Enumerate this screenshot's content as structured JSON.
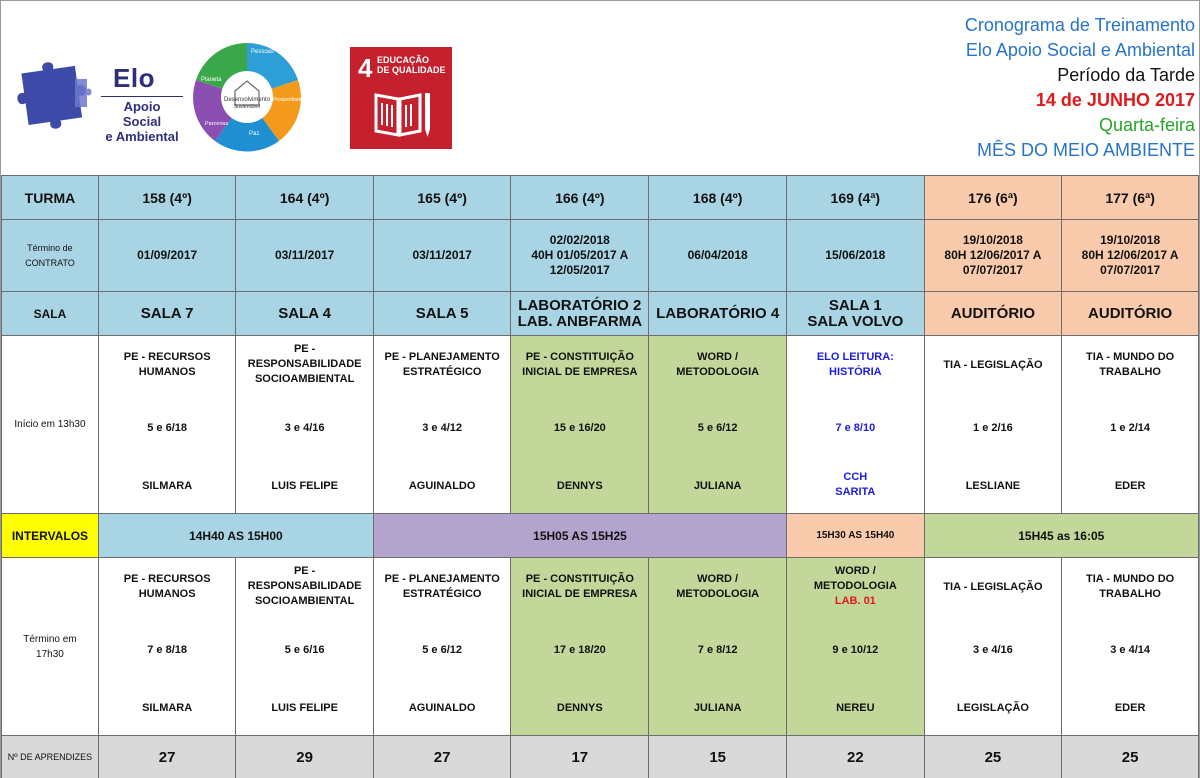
{
  "header": {
    "elo_logo": {
      "name": "Elo",
      "subtitle_line1": "Apoio Social",
      "subtitle_line2": "e Ambiental"
    },
    "wheel": {
      "center_line1": "Desenvolvimento",
      "center_line2": "Sustentável",
      "segments": [
        "Pessoas",
        "Prosperidade",
        "Paz",
        "Parcerias",
        "Planeta"
      ]
    },
    "ods": {
      "number": "4",
      "text_line1": "EDUCAÇÃO",
      "text_line2": "DE QUALIDADE"
    },
    "title_lines": {
      "line1": "Cronograma de Treinamento",
      "line2": "Elo Apoio Social e Ambiental",
      "line3": "Período da Tarde",
      "line4": "14 de JUNHO 2017",
      "line5": "Quarta-feira",
      "line6": "MÊS DO MEIO AMBIENTE"
    },
    "colors": {
      "blue": "#2673c8",
      "red": "#e0191e",
      "green": "#27a427",
      "ods_red": "#c4202e",
      "elo_navy": "#2e2f7a"
    }
  },
  "labels": {
    "turma": "TURMA",
    "termino_line1": "Término de",
    "termino_line2": "CONTRATO",
    "sala": "SALA",
    "inicio": "Início em 13h30",
    "intervalos": "INTERVALOS",
    "termino17_line1": "Término em",
    "termino17_line2": "17h30",
    "aprendizes": "Nº DE APRENDIZES"
  },
  "turmas": [
    {
      "turma": "158 (4º)",
      "termino": [
        "01/09/2017"
      ],
      "sala": [
        "SALA 7"
      ]
    },
    {
      "turma": "164 (4º)",
      "termino": [
        "03/11/2017"
      ],
      "sala": [
        "SALA 4"
      ]
    },
    {
      "turma": "165 (4º)",
      "termino": [
        "03/11/2017"
      ],
      "sala": [
        "SALA 5"
      ]
    },
    {
      "turma": "166 (4º)",
      "termino": [
        "02/02/2018",
        "40H 01/05/2017 A",
        "12/05/2017"
      ],
      "sala": [
        "LABORATÓRIO 2",
        "LAB. ANBFARMA"
      ]
    },
    {
      "turma": "168 (4º)",
      "termino": [
        "06/04/2018"
      ],
      "sala": [
        "LABORATÓRIO 4"
      ]
    },
    {
      "turma": "169 (4ª)",
      "termino": [
        "15/06/2018"
      ],
      "sala": [
        "SALA 1",
        "SALA VOLVO"
      ]
    },
    {
      "turma": "176 (6ª)",
      "termino": [
        "19/10/2018",
        "80H 12/06/2017 A",
        "07/07/2017"
      ],
      "sala": [
        "AUDITÓRIO"
      ]
    },
    {
      "turma": "177 (6ª)",
      "termino": [
        "19/10/2018",
        "80H 12/06/2017 A",
        "07/07/2017"
      ],
      "sala": [
        "AUDITÓRIO"
      ]
    }
  ],
  "session1": [
    {
      "subject": [
        "PE - RECURSOS",
        "HUMANOS"
      ],
      "qty": "5 e 6/18",
      "prof": [
        "SILMARA"
      ]
    },
    {
      "subject": [
        "PE -",
        "RESPONSABILIDADE",
        "SOCIOAMBIENTAL"
      ],
      "qty": "3 e 4/16",
      "prof": [
        "LUIS FELIPE"
      ]
    },
    {
      "subject": [
        "PE - PLANEJAMENTO",
        "ESTRATÉGICO"
      ],
      "qty": "3 e 4/12",
      "prof": [
        "AGUINALDO"
      ]
    },
    {
      "subject": [
        "PE - CONSTITUIÇÃO",
        "INICIAL DE EMPRESA"
      ],
      "qty": "15 e 16/20",
      "prof": [
        "DENNYS"
      ]
    },
    {
      "subject": [
        "WORD /",
        "METODOLOGIA"
      ],
      "qty": "5 e 6/12",
      "prof": [
        "JULIANA"
      ]
    },
    {
      "subject": [
        "ELO LEITURA:",
        "HISTÓRIA"
      ],
      "qty": "7 e 8/10",
      "prof": [
        "CCH",
        "SARITA"
      ]
    },
    {
      "subject": [
        "TIA - LEGISLAÇÃO"
      ],
      "qty": "1 e 2/16",
      "prof": [
        "LESLIANE"
      ]
    },
    {
      "subject": [
        "TIA - MUNDO DO",
        "TRABALHO"
      ],
      "qty": "1 e 2/14",
      "prof": [
        "EDER"
      ]
    }
  ],
  "intervals": [
    {
      "text": "14H40 AS 15H00"
    },
    {
      "text": "15H05 AS 15H25"
    },
    {
      "text": "15H30 AS 15H40"
    },
    {
      "text": "15H45 as 16:05"
    }
  ],
  "session2": [
    {
      "subject": [
        "PE - RECURSOS",
        "HUMANOS"
      ],
      "qty": "7 e 8/18",
      "prof": [
        "SILMARA"
      ]
    },
    {
      "subject": [
        "PE -",
        "RESPONSABILIDADE",
        "SOCIOAMBIENTAL"
      ],
      "qty": "5 e 6/16",
      "prof": [
        "LUIS FELIPE"
      ]
    },
    {
      "subject": [
        "PE - PLANEJAMENTO",
        "ESTRATÉGICO"
      ],
      "qty": "5 e 6/12",
      "prof": [
        "AGUINALDO"
      ]
    },
    {
      "subject": [
        "PE - CONSTITUIÇÃO",
        "INICIAL DE EMPRESA"
      ],
      "qty": "17 e 18/20",
      "prof": [
        "DENNYS"
      ]
    },
    {
      "subject": [
        "WORD /",
        "METODOLOGIA"
      ],
      "qty": "7 e 8/12",
      "prof": [
        "JULIANA"
      ]
    },
    {
      "subject": [
        "WORD /",
        "METODOLOGIA"
      ],
      "extra": "LAB. 01",
      "qty": "9 e 10/12",
      "prof": [
        "NEREU"
      ]
    },
    {
      "subject": [
        "TIA - LEGISLAÇÃO"
      ],
      "qty": "3 e 4/16",
      "prof": [
        "LEGISLAÇÃO"
      ]
    },
    {
      "subject": [
        "TIA - MUNDO DO",
        "TRABALHO"
      ],
      "qty": "3 e 4/14",
      "prof": [
        "EDER"
      ]
    }
  ],
  "aprendizes": [
    "27",
    "29",
    "27",
    "17",
    "15",
    "22",
    "25",
    "25"
  ]
}
